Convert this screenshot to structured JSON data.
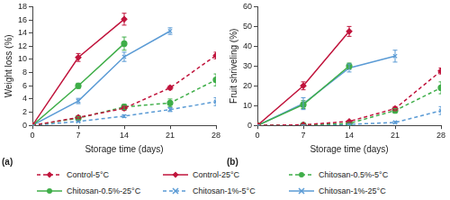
{
  "chart_data": [
    {
      "type": "line",
      "title": "(a)",
      "xlabel": "Storage time (days)",
      "ylabel": "Weight loss (%)",
      "x": [
        0,
        7,
        14,
        21,
        28
      ],
      "xlim": [
        0,
        28
      ],
      "xticks": [
        0,
        7,
        14,
        21,
        28
      ],
      "ylim": [
        0,
        18
      ],
      "yticks": [
        0,
        2,
        4,
        6,
        8,
        10,
        12,
        14,
        16,
        18
      ],
      "grid": false,
      "legend": "bottom",
      "series": [
        {
          "name": "Control-5°C",
          "color": "#c0143c",
          "marker": "diamond",
          "line_style": "dashed",
          "values": [
            0,
            1.2,
            2.6,
            5.7,
            10.6
          ],
          "errors": [
            0,
            0.2,
            0.3,
            0.3,
            0.5
          ]
        },
        {
          "name": "Control-25°C",
          "color": "#c0143c",
          "marker": "diamond",
          "line_style": "solid",
          "values": [
            0,
            10.3,
            16.1,
            null,
            null
          ],
          "errors": [
            0,
            0.6,
            0.9,
            null,
            null
          ]
        },
        {
          "name": "Chitosan-0.5%-5°C",
          "color": "#3fae49",
          "marker": "circle",
          "line_style": "dashed",
          "values": [
            0,
            1.1,
            2.8,
            3.4,
            6.9
          ],
          "errors": [
            0,
            0.2,
            0.4,
            0.6,
            0.9
          ]
        },
        {
          "name": "Chitosan-0.5%-25°C",
          "color": "#3fae49",
          "marker": "circle",
          "line_style": "solid",
          "values": [
            0,
            6.0,
            12.4,
            null,
            null
          ],
          "errors": [
            0,
            0.4,
            1.0,
            null,
            null
          ]
        },
        {
          "name": "Chitosan-1%-5°C",
          "color": "#5b9bd5",
          "marker": "x",
          "line_style": "dashed",
          "values": [
            0,
            0.6,
            1.4,
            2.4,
            3.6
          ],
          "errors": [
            0,
            0.1,
            0.2,
            0.3,
            0.6
          ]
        },
        {
          "name": "Chitosan-1%-25°C",
          "color": "#5b9bd5",
          "marker": "x",
          "line_style": "solid",
          "values": [
            0,
            3.7,
            10.4,
            14.3,
            null
          ],
          "errors": [
            0,
            0.4,
            0.7,
            0.5,
            null
          ]
        }
      ]
    },
    {
      "type": "line",
      "title": "(b)",
      "xlabel": "Storage time (days)",
      "ylabel": "Fruit shriveling (%)",
      "x": [
        0,
        7,
        14,
        21,
        28
      ],
      "xlim": [
        0,
        28
      ],
      "xticks": [
        0,
        7,
        14,
        21,
        28
      ],
      "ylim": [
        0,
        60
      ],
      "yticks": [
        0,
        10,
        20,
        30,
        40,
        50,
        60
      ],
      "grid": false,
      "legend": "bottom",
      "series": [
        {
          "name": "Control-5°C",
          "color": "#c0143c",
          "marker": "diamond",
          "line_style": "dashed",
          "values": [
            0,
            0.3,
            2.0,
            8.5,
            27.5
          ],
          "errors": [
            0,
            0.2,
            0.5,
            1.0,
            1.5
          ]
        },
        {
          "name": "Control-25°C",
          "color": "#c0143c",
          "marker": "diamond",
          "line_style": "solid",
          "values": [
            0,
            20,
            47.5,
            null,
            null
          ],
          "errors": [
            0,
            2,
            2.5,
            null,
            null
          ]
        },
        {
          "name": "Chitosan-0.5%-5°C",
          "color": "#3fae49",
          "marker": "circle",
          "line_style": "dashed",
          "values": [
            0,
            0.2,
            1.0,
            7.5,
            19
          ],
          "errors": [
            0,
            0.2,
            0.5,
            1.0,
            3
          ]
        },
        {
          "name": "Chitosan-0.5%-25°C",
          "color": "#3fae49",
          "marker": "circle",
          "line_style": "solid",
          "values": [
            0,
            10.5,
            30,
            null,
            null
          ],
          "errors": [
            0,
            2,
            1.5,
            null,
            null
          ]
        },
        {
          "name": "Chitosan-1%-5°C",
          "color": "#5b9bd5",
          "marker": "x",
          "line_style": "dashed",
          "values": [
            0,
            0.1,
            0.5,
            1.5,
            7.5
          ],
          "errors": [
            0,
            0.1,
            0.3,
            0.5,
            2
          ]
        },
        {
          "name": "Chitosan-1%-25°C",
          "color": "#5b9bd5",
          "marker": "x",
          "line_style": "solid",
          "values": [
            0,
            11,
            29,
            35,
            null
          ],
          "errors": [
            0,
            3,
            2,
            3,
            null
          ]
        }
      ]
    }
  ]
}
